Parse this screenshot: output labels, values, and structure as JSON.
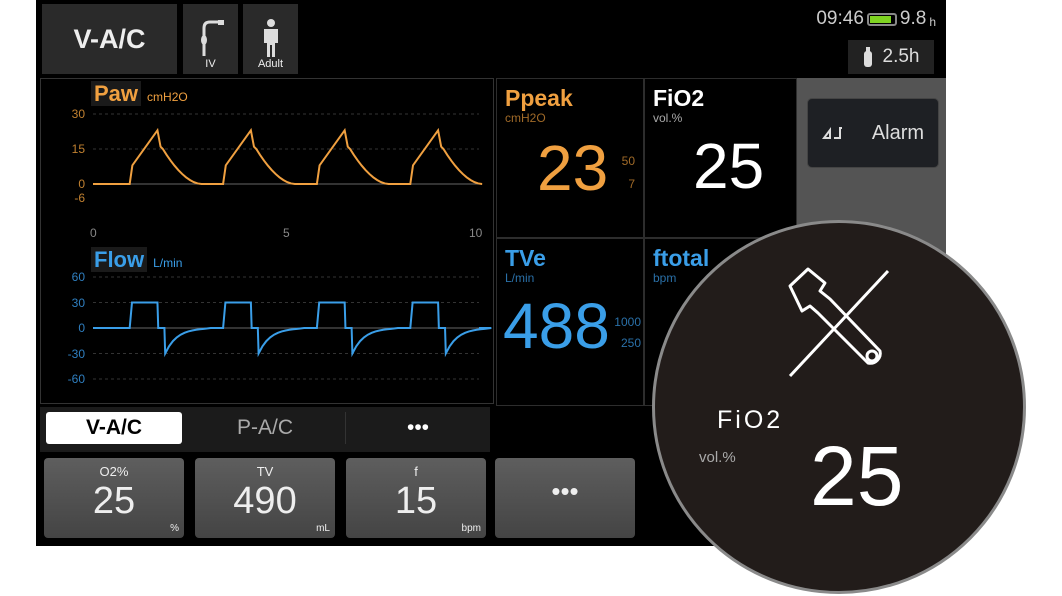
{
  "header": {
    "mode": "V-A/C",
    "circuit_icon": "iv-tube-icon",
    "circuit_label": "IV",
    "patient_icon": "adult-person-icon",
    "patient_label": "Adult",
    "time": "09:46",
    "battery_level": 0.9,
    "battery_time": "9.8",
    "battery_unit": "h",
    "o2_time": "2.5h"
  },
  "paw": {
    "label": "Paw",
    "unit": "cmH2O",
    "color": "#f0a040",
    "yticks": [
      "30",
      "15",
      "0",
      "-6"
    ],
    "xticks": [
      "0",
      "5",
      "10"
    ],
    "peak": 23,
    "peep": 0,
    "breath_starts": [
      0.95,
      3.37,
      5.8,
      8.22
    ]
  },
  "flow": {
    "label": "Flow",
    "unit": "L/min",
    "color": "#3a9ee8",
    "yticks": [
      "60",
      "30",
      "0",
      "-30",
      "-60"
    ],
    "insp_flow": 30,
    "exp_peak": -30
  },
  "params": {
    "ppeak": {
      "name": "Ppeak",
      "unit": "cmH2O",
      "value": "23",
      "hi": "50",
      "lo": "7"
    },
    "fio2": {
      "name": "FiO2",
      "unit": "vol.%",
      "value": "25"
    },
    "tve": {
      "name": "TVe",
      "unit": "L/min",
      "value": "488",
      "hi": "1000",
      "lo": "250"
    },
    "ftotal": {
      "name": "ftotal",
      "unit": "bpm"
    }
  },
  "alarm": {
    "label": "Alarm",
    "icon": "alarm-silence-icon"
  },
  "tabs": [
    "V-A/C",
    "P-A/C",
    "•••"
  ],
  "settings": [
    {
      "name": "O2%",
      "value": "25",
      "unit": "%"
    },
    {
      "name": "TV",
      "value": "490",
      "unit": "mL"
    },
    {
      "name": "f",
      "value": "15",
      "unit": "bpm"
    },
    {
      "name": "",
      "value": "•••",
      "unit": ""
    }
  ],
  "magnifier": {
    "icon": "tools-disabled-icon",
    "name": "FiO2",
    "unit": "vol.%",
    "value": "25"
  }
}
